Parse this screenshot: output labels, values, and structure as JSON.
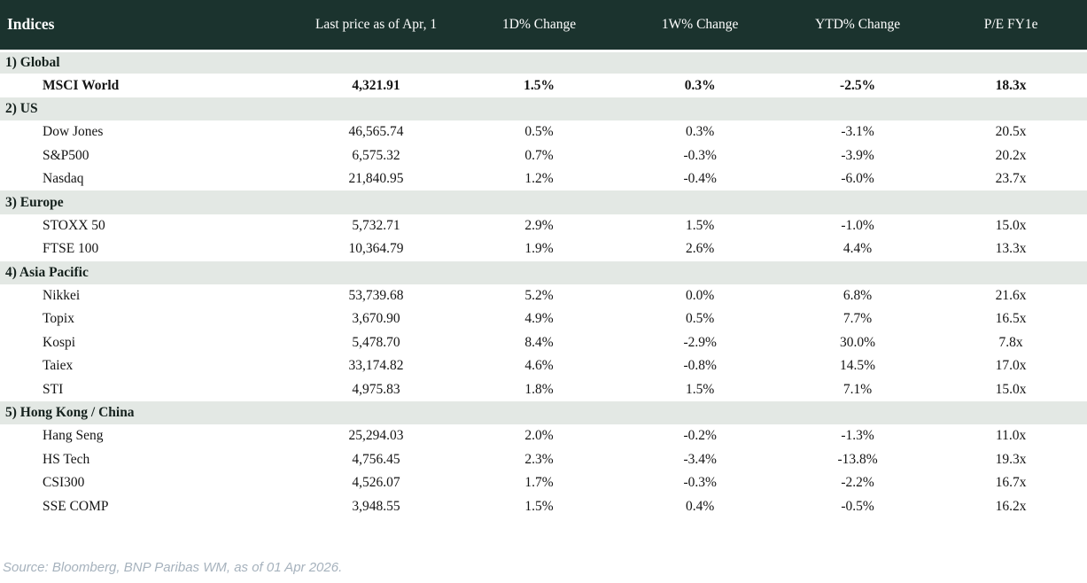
{
  "colors": {
    "header_bg": "#1b332e",
    "header_text": "#ffffff",
    "band_bg": "#e3e8e4",
    "positive": "#008a00",
    "negative": "#bf1d2a",
    "text": "#141414",
    "source_text": "#a6b2bd"
  },
  "table": {
    "title": "Indices",
    "columns": [
      "Last price as of Apr, 1",
      "1D% Change",
      "1W% Change",
      "YTD% Change",
      "P/E FY1e"
    ],
    "sections": [
      {
        "label": "1) Global",
        "rows": [
          {
            "name": "MSCI World",
            "price": "4,321.91",
            "changes": [
              {
                "v": "1.5%",
                "c": "pos"
              },
              {
                "v": "0.3%",
                "c": "pos"
              },
              {
                "v": "-2.5%",
                "c": "neg"
              }
            ],
            "pe": "18.3x",
            "bold": true
          }
        ]
      },
      {
        "label": "2) US",
        "rows": [
          {
            "name": "Dow Jones",
            "price": "46,565.74",
            "changes": [
              {
                "v": "0.5%",
                "c": "pos"
              },
              {
                "v": "0.3%",
                "c": "pos"
              },
              {
                "v": "-3.1%",
                "c": "neg"
              }
            ],
            "pe": "20.5x"
          },
          {
            "name": "S&P500",
            "price": "6,575.32",
            "changes": [
              {
                "v": "0.7%",
                "c": "pos"
              },
              {
                "v": "-0.3%",
                "c": "neg"
              },
              {
                "v": "-3.9%",
                "c": "neg"
              }
            ],
            "pe": "20.2x"
          },
          {
            "name": "Nasdaq",
            "price": "21,840.95",
            "changes": [
              {
                "v": "1.2%",
                "c": "pos"
              },
              {
                "v": "-0.4%",
                "c": "neg"
              },
              {
                "v": "-6.0%",
                "c": "neg"
              }
            ],
            "pe": "23.7x"
          }
        ]
      },
      {
        "label": "3) Europe",
        "rows": [
          {
            "name": "STOXX 50",
            "price": "5,732.71",
            "changes": [
              {
                "v": "2.9%",
                "c": "pos"
              },
              {
                "v": "1.5%",
                "c": "pos"
              },
              {
                "v": "-1.0%",
                "c": "neg"
              }
            ],
            "pe": "15.0x"
          },
          {
            "name": "FTSE 100",
            "price": "10,364.79",
            "changes": [
              {
                "v": "1.9%",
                "c": "pos"
              },
              {
                "v": "2.6%",
                "c": "pos"
              },
              {
                "v": "4.4%",
                "c": "pos"
              }
            ],
            "pe": "13.3x"
          }
        ]
      },
      {
        "label": "4) Asia Pacific",
        "rows": [
          {
            "name": "Nikkei",
            "price": "53,739.68",
            "changes": [
              {
                "v": "5.2%",
                "c": "pos"
              },
              {
                "v": "0.0%",
                "c": "neg"
              },
              {
                "v": "6.8%",
                "c": "pos"
              }
            ],
            "pe": "21.6x"
          },
          {
            "name": "Topix",
            "price": "3,670.90",
            "changes": [
              {
                "v": "4.9%",
                "c": "pos"
              },
              {
                "v": "0.5%",
                "c": "pos"
              },
              {
                "v": "7.7%",
                "c": "pos"
              }
            ],
            "pe": "16.5x"
          },
          {
            "name": "Kospi",
            "price": "5,478.70",
            "changes": [
              {
                "v": "8.4%",
                "c": "pos"
              },
              {
                "v": "-2.9%",
                "c": "neg"
              },
              {
                "v": "30.0%",
                "c": "pos"
              }
            ],
            "pe": "7.8x"
          },
          {
            "name": "Taiex",
            "price": "33,174.82",
            "changes": [
              {
                "v": "4.6%",
                "c": "pos"
              },
              {
                "v": "-0.8%",
                "c": "neg"
              },
              {
                "v": "14.5%",
                "c": "pos"
              }
            ],
            "pe": "17.0x"
          },
          {
            "name": "STI",
            "price": "4,975.83",
            "changes": [
              {
                "v": "1.8%",
                "c": "pos"
              },
              {
                "v": "1.5%",
                "c": "pos"
              },
              {
                "v": "7.1%",
                "c": "pos"
              }
            ],
            "pe": "15.0x"
          }
        ]
      },
      {
        "label": "5) Hong Kong / China",
        "rows": [
          {
            "name": "Hang Seng",
            "price": "25,294.03",
            "changes": [
              {
                "v": "2.0%",
                "c": "pos"
              },
              {
                "v": "-0.2%",
                "c": "neg"
              },
              {
                "v": "-1.3%",
                "c": "neg"
              }
            ],
            "pe": "11.0x"
          },
          {
            "name": "HS Tech",
            "price": "4,756.45",
            "changes": [
              {
                "v": "2.3%",
                "c": "pos"
              },
              {
                "v": "-3.4%",
                "c": "neg"
              },
              {
                "v": "-13.8%",
                "c": "neg"
              }
            ],
            "pe": "19.3x"
          },
          {
            "name": "CSI300",
            "price": "4,526.07",
            "changes": [
              {
                "v": "1.7%",
                "c": "pos"
              },
              {
                "v": "-0.3%",
                "c": "neg"
              },
              {
                "v": "-2.2%",
                "c": "neg"
              }
            ],
            "pe": "16.7x"
          },
          {
            "name": "SSE COMP",
            "price": "3,948.55",
            "changes": [
              {
                "v": "1.5%",
                "c": "pos"
              },
              {
                "v": "0.4%",
                "c": "pos"
              },
              {
                "v": "-0.5%",
                "c": "neg"
              }
            ],
            "pe": "16.2x"
          }
        ]
      }
    ]
  },
  "chart_data": {
    "type": "table",
    "title": "Indices",
    "columns": [
      "Indices",
      "Last price as of Apr, 1",
      "1D% Change",
      "1W% Change",
      "YTD% Change",
      "P/E FY1e"
    ],
    "rows": [
      [
        "1) Global",
        "",
        "",
        "",
        "",
        ""
      ],
      [
        "MSCI World",
        "4,321.91",
        "1.5%",
        "0.3%",
        "-2.5%",
        "18.3x"
      ],
      [
        "2) US",
        "",
        "",
        "",
        "",
        ""
      ],
      [
        "Dow Jones",
        "46,565.74",
        "0.5%",
        "0.3%",
        "-3.1%",
        "20.5x"
      ],
      [
        "S&P500",
        "6,575.32",
        "0.7%",
        "-0.3%",
        "-3.9%",
        "20.2x"
      ],
      [
        "Nasdaq",
        "21,840.95",
        "1.2%",
        "-0.4%",
        "-6.0%",
        "23.7x"
      ],
      [
        "3) Europe",
        "",
        "",
        "",
        "",
        ""
      ],
      [
        "STOXX 50",
        "5,732.71",
        "2.9%",
        "1.5%",
        "-1.0%",
        "15.0x"
      ],
      [
        "FTSE 100",
        "10,364.79",
        "1.9%",
        "2.6%",
        "4.4%",
        "13.3x"
      ],
      [
        "4) Asia Pacific",
        "",
        "",
        "",
        "",
        ""
      ],
      [
        "Nikkei",
        "53,739.68",
        "5.2%",
        "0.0%",
        "6.8%",
        "21.6x"
      ],
      [
        "Topix",
        "3,670.90",
        "4.9%",
        "0.5%",
        "7.7%",
        "16.5x"
      ],
      [
        "Kospi",
        "5,478.70",
        "8.4%",
        "-2.9%",
        "30.0%",
        "7.8x"
      ],
      [
        "Taiex",
        "33,174.82",
        "4.6%",
        "-0.8%",
        "14.5%",
        "17.0x"
      ],
      [
        "STI",
        "4,975.83",
        "1.8%",
        "1.5%",
        "7.1%",
        "15.0x"
      ],
      [
        "5) Hong Kong / China",
        "",
        "",
        "",
        "",
        ""
      ],
      [
        "Hang Seng",
        "25,294.03",
        "2.0%",
        "-0.2%",
        "-1.3%",
        "11.0x"
      ],
      [
        "HS Tech",
        "4,756.45",
        "2.3%",
        "-3.4%",
        "-13.8%",
        "19.3x"
      ],
      [
        "CSI300",
        "4,526.07",
        "1.7%",
        "-0.3%",
        "-2.2%",
        "16.7x"
      ],
      [
        "SSE COMP",
        "3,948.55",
        "1.5%",
        "0.4%",
        "-0.5%",
        "16.2x"
      ]
    ]
  },
  "footer": {
    "source": "Source: Bloomberg, BNP Paribas WM, as of 01 Apr 2026."
  }
}
